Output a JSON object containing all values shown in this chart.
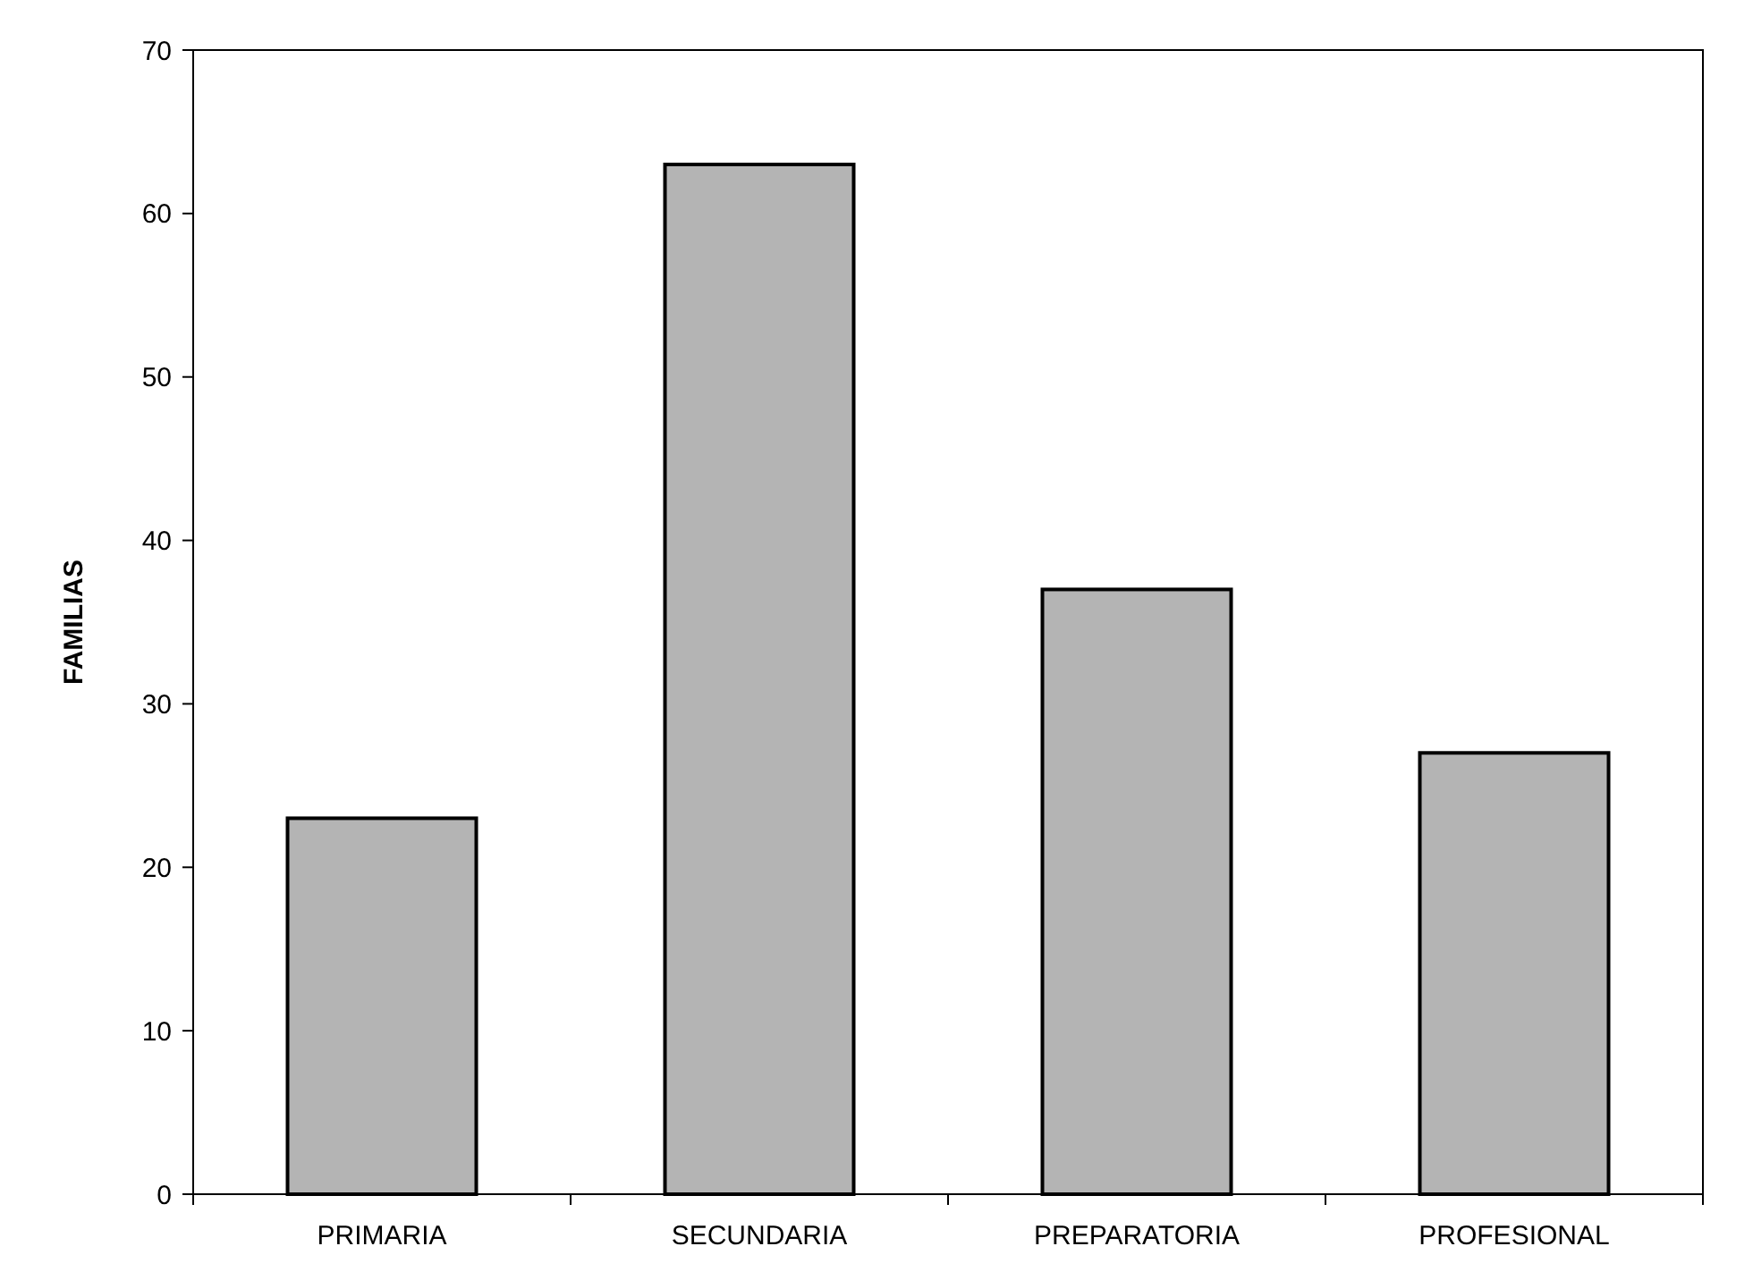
{
  "chart_data": {
    "type": "bar",
    "ylabel": "FAMILIAS",
    "categories": [
      "PRIMARIA",
      "SECUNDARIA",
      "PREPARATORIA",
      "PROFESIONAL"
    ],
    "values": [
      23,
      63,
      37,
      27
    ],
    "color": "#b4b4b4",
    "ylim": [
      0,
      70
    ],
    "yticks": [
      0,
      10,
      20,
      30,
      40,
      50,
      60,
      70
    ],
    "grid": false
  }
}
